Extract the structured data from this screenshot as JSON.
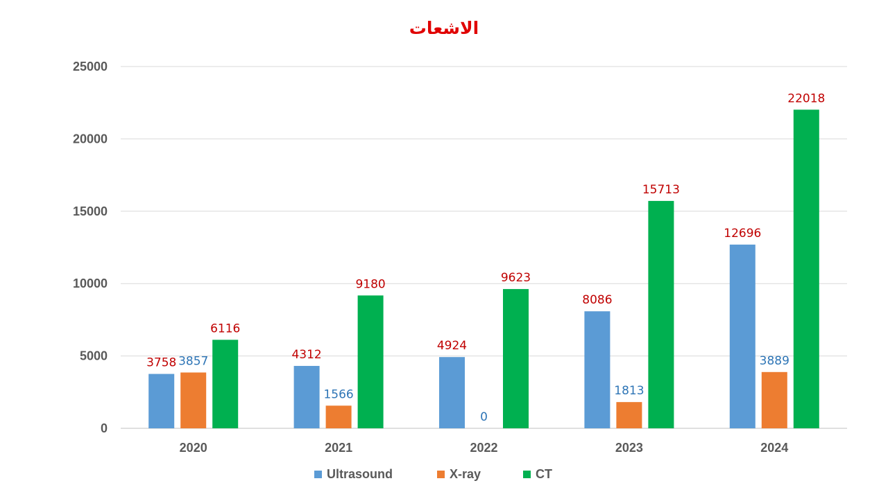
{
  "chart_data": {
    "type": "bar",
    "title": "الاشعات",
    "categories": [
      "2020",
      "2021",
      "2022",
      "2023",
      "2024"
    ],
    "series": [
      {
        "name": "Ultrasound",
        "color": "#5B9BD5",
        "label_color": "#C00000",
        "values": [
          3758,
          4312,
          4924,
          8086,
          12696
        ]
      },
      {
        "name": "X-ray",
        "color": "#ED7D31",
        "label_color": "#2E75B6",
        "values": [
          3857,
          1566,
          0,
          1813,
          3889
        ]
      },
      {
        "name": "CT",
        "color": "#00B050",
        "label_color": "#C00000",
        "values": [
          6116,
          9180,
          9623,
          15713,
          22018
        ]
      }
    ],
    "ylim": [
      0,
      25000
    ],
    "yticks": [
      "0",
      "5000",
      "10000",
      "15000",
      "20000",
      "25000"
    ],
    "grid": true,
    "legend_position": "bottom",
    "xlabel": "",
    "ylabel": "",
    "title_color": "#E00000"
  }
}
